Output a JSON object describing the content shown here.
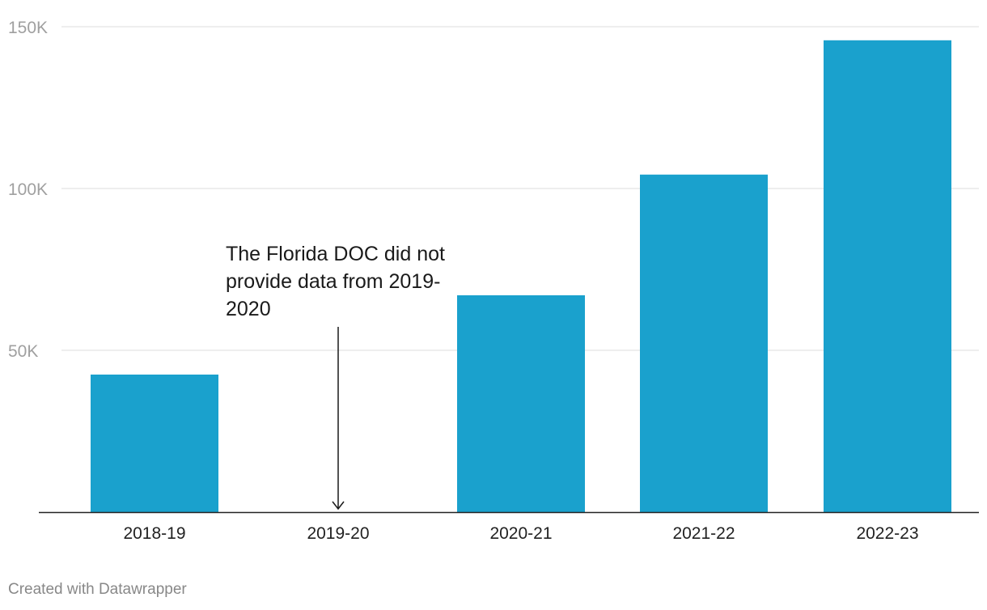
{
  "chart_data": {
    "type": "bar",
    "categories": [
      "2018-19",
      "2019-20",
      "2020-21",
      "2021-22",
      "2022-23"
    ],
    "values": [
      42500,
      null,
      67000,
      104300,
      145800
    ],
    "ylim": [
      0,
      150000
    ],
    "yticks": [
      50000,
      100000,
      150000
    ],
    "ytick_labels": [
      "50K",
      "100K",
      "150K"
    ],
    "grid": true,
    "title": "",
    "xlabel": "",
    "ylabel": "",
    "bar_color": "#1aa1cd",
    "annotation": {
      "lines": [
        "The Florida DOC did not",
        "provide data from 2019-",
        "2020"
      ],
      "category": "2019-20"
    }
  },
  "footer": {
    "credit": "Created with Datawrapper"
  }
}
